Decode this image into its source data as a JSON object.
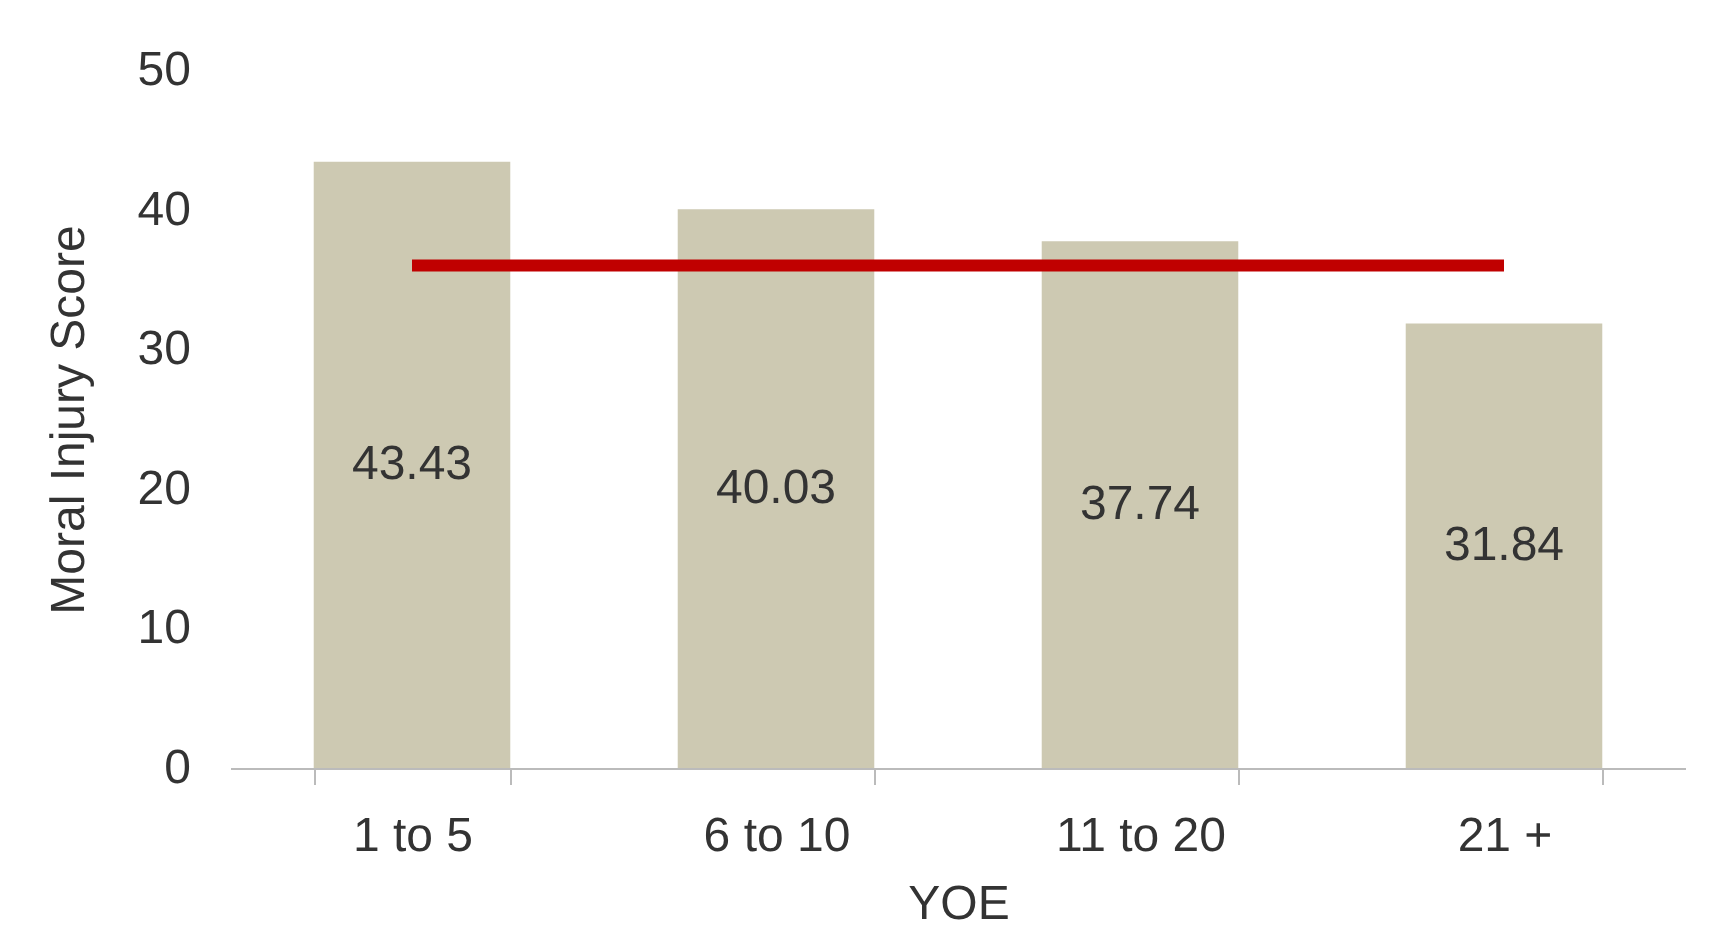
{
  "chart_data": {
    "type": "bar",
    "xlabel": "YOE",
    "ylabel": "Moral Injury Score",
    "categories": [
      "1 to 5",
      "6 to 10",
      "11 to 20",
      "21 +"
    ],
    "series": [
      {
        "color": "#cdc9b2",
        "values": [
          43.43,
          40.03,
          37.74,
          31.84
        ],
        "value_labels": [
          "43.43",
          "40.03",
          "37.74",
          "31.84"
        ]
      },
      {
        "type": "line",
        "color": "#c00000",
        "values": [
          36,
          36,
          36,
          36
        ]
      }
    ],
    "ylim": [
      0,
      50
    ],
    "yticks": [
      0,
      10,
      20,
      30,
      40,
      50
    ],
    "grid": false
  }
}
